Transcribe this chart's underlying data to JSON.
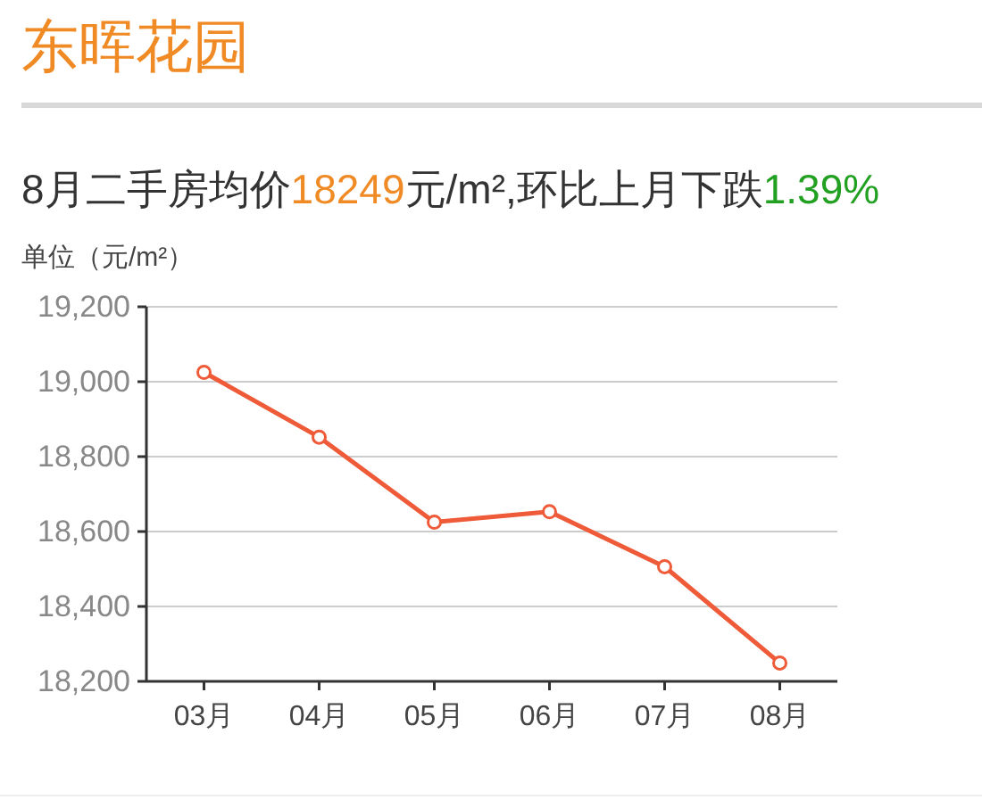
{
  "chart_data": {
    "type": "line",
    "title": "东晖花园",
    "subtitle": "8月二手房均价18249元/m²,环比上月下跌1.39%",
    "ylabel": "单位（元/m²）",
    "categories": [
      "03月",
      "04月",
      "05月",
      "06月",
      "07月",
      "08月"
    ],
    "series": [
      {
        "color": "#ef5a38",
        "values": [
          19025,
          18852,
          18625,
          18653,
          18506,
          18249
        ]
      }
    ],
    "ylim": [
      18200,
      19200
    ],
    "yticks": [
      {
        "value": 18200,
        "label": "18,200"
      },
      {
        "value": 18400,
        "label": "18,400"
      },
      {
        "value": 18600,
        "label": "18,600"
      },
      {
        "value": 18800,
        "label": "18,800"
      },
      {
        "value": 19000,
        "label": "19,000"
      },
      {
        "value": 19200,
        "label": "19,200"
      }
    ],
    "grid": "y",
    "marker": "circle"
  }
}
